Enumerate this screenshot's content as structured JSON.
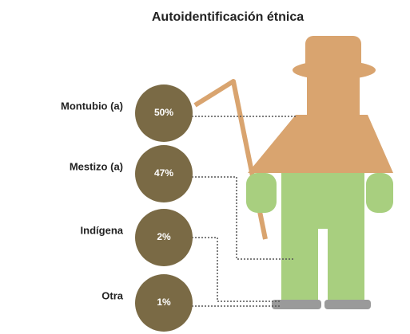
{
  "chart_data": {
    "type": "pictorial",
    "title": "Autoidentificación étnica",
    "categories": [
      "Montubio (a)",
      "Mestizo (a)",
      "Indígena",
      "Otra"
    ],
    "values": [
      50,
      47,
      2,
      1
    ],
    "value_labels": [
      "50%",
      "47%",
      "2%",
      "1%"
    ],
    "color": "#7a6a45"
  }
}
